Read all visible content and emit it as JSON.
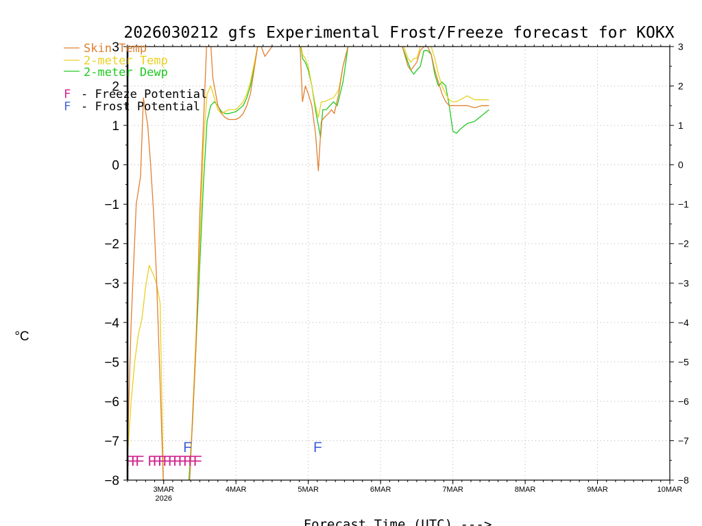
{
  "chart_data": {
    "type": "line",
    "title": "2026030212 gfs Experimental Frost/Freeze forecast for KOKX",
    "xlabel": "Forecast Time (UTC) --->",
    "ylabel": "°C",
    "ylim": [
      -8,
      3
    ],
    "yticks": [
      -8,
      -7,
      -6,
      -5,
      -4,
      -3,
      -2,
      -1,
      0,
      1,
      2,
      3
    ],
    "yticks_right": [
      "-8",
      "-7",
      "-6",
      "-5",
      "-4",
      "-3",
      "-2",
      "-1",
      "0",
      "1",
      "2",
      "3"
    ],
    "xlim": [
      2.5,
      10.0
    ],
    "xticks": [
      {
        "x": 3,
        "label": "3MAR",
        "sub": "2026"
      },
      {
        "x": 4,
        "label": "4MAR",
        "sub": ""
      },
      {
        "x": 5,
        "label": "5MAR",
        "sub": ""
      },
      {
        "x": 6,
        "label": "6MAR",
        "sub": ""
      },
      {
        "x": 7,
        "label": "7MAR",
        "sub": ""
      },
      {
        "x": 8,
        "label": "8MAR",
        "sub": ""
      },
      {
        "x": 9,
        "label": "9MAR",
        "sub": ""
      },
      {
        "x": 10,
        "label": "10MAR",
        "sub": ""
      }
    ],
    "grid": true,
    "legend": [
      {
        "name": "Skin Temp",
        "color": "#e08030"
      },
      {
        "name": "2-meter Temp",
        "color": "#e8d020"
      },
      {
        "name": "2-meter Dewp",
        "color": "#20c820"
      }
    ],
    "potential_legend": [
      {
        "symbol": "F",
        "text": "- Freeze Potential",
        "color": "#d0208c"
      },
      {
        "symbol": "F",
        "text": "- Frost Potential",
        "color": "#4060d8"
      }
    ],
    "series": [
      {
        "name": "Skin Temp",
        "color": "#e08030",
        "x": [
          2.5,
          2.55,
          2.62,
          2.68,
          2.72,
          2.78,
          2.82,
          2.86,
          2.9,
          2.95,
          3.0,
          3.05,
          3.15,
          3.25,
          3.35,
          3.45,
          3.5,
          3.55,
          3.6,
          3.64,
          3.68,
          3.75,
          3.8,
          3.85,
          3.9,
          3.95,
          4.0,
          4.05,
          4.1,
          4.15,
          4.2,
          4.3,
          4.35,
          4.4,
          4.5,
          4.6,
          4.7,
          4.8,
          4.88,
          4.92,
          4.96,
          5.0,
          5.05,
          5.1,
          5.14,
          5.18,
          5.22,
          5.28,
          5.32,
          5.36,
          5.42,
          5.48,
          5.55,
          5.7,
          5.9,
          6.1,
          6.3,
          6.38,
          6.42,
          6.46,
          6.5,
          6.55,
          6.6,
          6.65,
          6.7,
          6.75,
          6.8,
          6.85,
          6.9,
          6.95,
          7.0,
          7.05,
          7.1,
          7.2,
          7.3,
          7.4,
          7.5
        ],
        "y": [
          -7.2,
          -4.0,
          -1.0,
          -0.3,
          1.7,
          1.0,
          0.0,
          -1.2,
          -2.8,
          -5.5,
          -8.3,
          -8.6,
          -9.0,
          -9.0,
          -8.4,
          -4.5,
          -1.2,
          1.0,
          3.3,
          3.4,
          2.2,
          1.5,
          1.3,
          1.2,
          1.15,
          1.15,
          1.15,
          1.2,
          1.3,
          1.5,
          1.8,
          3.0,
          3.0,
          2.75,
          3.0,
          3.2,
          3.3,
          3.3,
          3.3,
          1.6,
          2.0,
          1.8,
          1.5,
          0.8,
          -0.15,
          1.1,
          1.2,
          1.3,
          1.4,
          1.3,
          1.8,
          2.5,
          3.0,
          3.3,
          3.3,
          3.3,
          3.0,
          2.5,
          2.4,
          2.5,
          2.6,
          2.9,
          3.0,
          3.0,
          2.8,
          2.4,
          2.1,
          1.8,
          1.6,
          1.5,
          1.5,
          1.5,
          1.5,
          1.5,
          1.45,
          1.5,
          1.5
        ]
      },
      {
        "name": "2-meter Temp",
        "color": "#e8d020",
        "x": [
          2.5,
          2.55,
          2.6,
          2.65,
          2.7,
          2.75,
          2.8,
          2.86,
          2.9,
          2.95,
          3.0,
          3.05,
          3.15,
          3.25,
          3.35,
          3.42,
          3.5,
          3.55,
          3.6,
          3.65,
          3.7,
          3.75,
          3.8,
          3.85,
          3.9,
          4.0,
          4.1,
          4.15,
          4.2,
          4.3,
          4.4,
          4.5,
          4.6,
          4.7,
          4.8,
          4.88,
          4.92,
          4.96,
          5.0,
          5.05,
          5.1,
          5.14,
          5.18,
          5.22,
          5.28,
          5.35,
          5.42,
          5.48,
          5.55,
          5.7,
          5.9,
          6.1,
          6.3,
          6.38,
          6.42,
          6.46,
          6.5,
          6.55,
          6.6,
          6.65,
          6.7,
          6.75,
          6.8,
          6.85,
          6.9,
          6.95,
          7.0,
          7.05,
          7.1,
          7.15,
          7.2,
          7.25,
          7.3,
          7.4,
          7.5
        ],
        "y": [
          -7.4,
          -6.0,
          -5.0,
          -4.3,
          -3.9,
          -3.1,
          -2.55,
          -2.8,
          -3.0,
          -3.5,
          -8.4,
          -8.8,
          -9.0,
          -9.0,
          -8.4,
          -5.5,
          -2.0,
          0.5,
          1.8,
          2.0,
          1.7,
          1.4,
          1.3,
          1.35,
          1.4,
          1.4,
          1.6,
          1.8,
          2.1,
          3.0,
          3.2,
          3.3,
          3.3,
          3.3,
          3.3,
          3.3,
          2.8,
          2.7,
          2.5,
          2.0,
          1.5,
          1.2,
          1.6,
          1.6,
          1.65,
          1.7,
          1.9,
          2.5,
          3.0,
          3.3,
          3.3,
          3.3,
          3.1,
          2.7,
          2.6,
          2.7,
          2.7,
          3.0,
          3.1,
          3.1,
          3.0,
          2.7,
          2.3,
          2.0,
          1.8,
          1.65,
          1.6,
          1.6,
          1.65,
          1.7,
          1.75,
          1.7,
          1.65,
          1.65,
          1.65
        ]
      },
      {
        "name": "2-meter Dewp",
        "color": "#20c820",
        "x": [
          2.5,
          2.6,
          2.7,
          2.8,
          2.9,
          3.0,
          3.1,
          3.2,
          3.3,
          3.35,
          3.4,
          3.45,
          3.5,
          3.55,
          3.6,
          3.65,
          3.7,
          3.75,
          3.8,
          3.85,
          3.9,
          4.0,
          4.1,
          4.15,
          4.2,
          4.3,
          4.4,
          4.5,
          4.6,
          4.7,
          4.8,
          4.88,
          4.92,
          4.96,
          5.0,
          5.05,
          5.1,
          5.14,
          5.17,
          5.2,
          5.25,
          5.3,
          5.35,
          5.4,
          5.48,
          5.55,
          5.7,
          5.9,
          6.1,
          6.3,
          6.38,
          6.42,
          6.46,
          6.5,
          6.55,
          6.6,
          6.65,
          6.7,
          6.72,
          6.75,
          6.8,
          6.85,
          6.9,
          6.95,
          7.0,
          7.05,
          7.1,
          7.2,
          7.3,
          7.4,
          7.5
        ],
        "y": [
          -9.0,
          -9.0,
          -9.0,
          -9.0,
          -9.0,
          -9.0,
          -9.0,
          -9.0,
          -8.8,
          -8.0,
          -6.5,
          -4.5,
          -2.5,
          -0.5,
          1.1,
          1.5,
          1.6,
          1.5,
          1.35,
          1.3,
          1.3,
          1.35,
          1.5,
          1.7,
          2.0,
          3.0,
          3.2,
          3.3,
          3.3,
          3.3,
          3.3,
          3.3,
          2.7,
          2.6,
          2.4,
          2.0,
          1.4,
          1.0,
          0.7,
          1.4,
          1.4,
          1.5,
          1.6,
          1.5,
          2.1,
          3.0,
          3.3,
          3.3,
          3.3,
          3.0,
          2.6,
          2.4,
          2.3,
          2.4,
          2.5,
          2.9,
          2.9,
          2.8,
          2.6,
          2.3,
          2.0,
          2.1,
          2.0,
          1.5,
          0.85,
          0.8,
          0.9,
          1.05,
          1.1,
          1.25,
          1.4
        ]
      }
    ],
    "freeze_marks": {
      "symbol": "F",
      "color": "#d0208c",
      "y": -7.5,
      "x": [
        2.54,
        2.61,
        2.67,
        2.84,
        2.91,
        2.98,
        3.05,
        3.12,
        3.19,
        3.26,
        3.33,
        3.4,
        3.47
      ]
    },
    "frost_marks": {
      "symbol": "F",
      "color": "#4060d8",
      "y": -7.15,
      "x": [
        3.33,
        5.13
      ]
    }
  }
}
